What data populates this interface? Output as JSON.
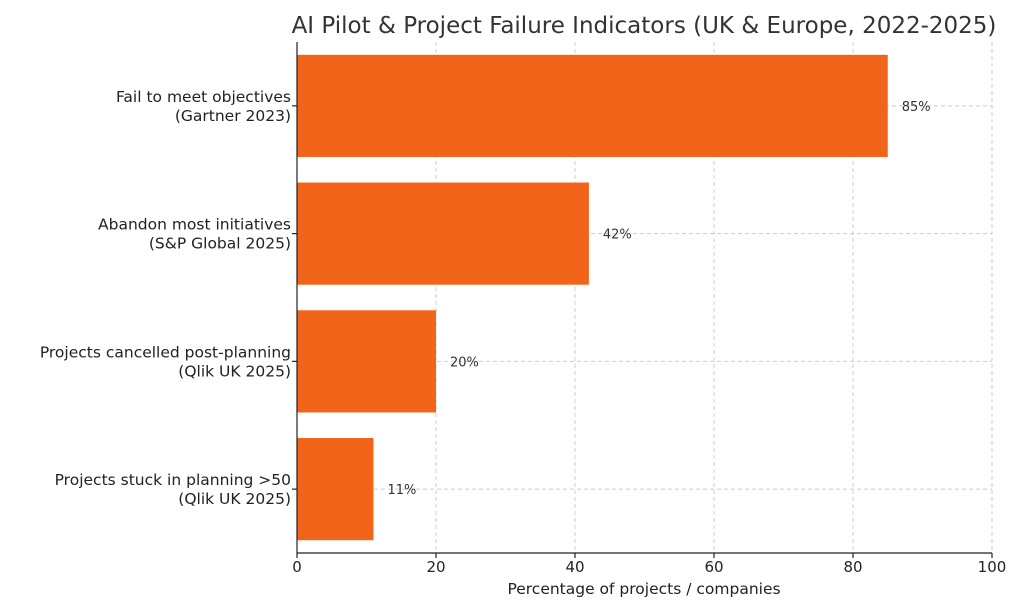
{
  "chart_data": {
    "type": "bar",
    "orientation": "horizontal",
    "title": "AI Pilot & Project Failure Indicators (UK & Europe, 2022-2025)",
    "xlabel": "Percentage of projects / companies",
    "ylabel": "",
    "xlim": [
      0,
      100
    ],
    "xticks": [
      0,
      20,
      40,
      60,
      80,
      100
    ],
    "grid": true,
    "bar_color": "#f26419",
    "categories": [
      [
        "Fail to meet objectives",
        "(Gartner 2023)"
      ],
      [
        "Abandon most initiatives",
        "(S&P Global 2025)"
      ],
      [
        "Projects cancelled post-planning",
        "(Qlik UK 2025)"
      ],
      [
        "Projects stuck in planning >50",
        "(Qlik UK 2025)"
      ]
    ],
    "values": [
      85,
      42,
      20,
      11
    ],
    "data_labels": [
      "85%",
      "42%",
      "20%",
      "11%"
    ]
  }
}
